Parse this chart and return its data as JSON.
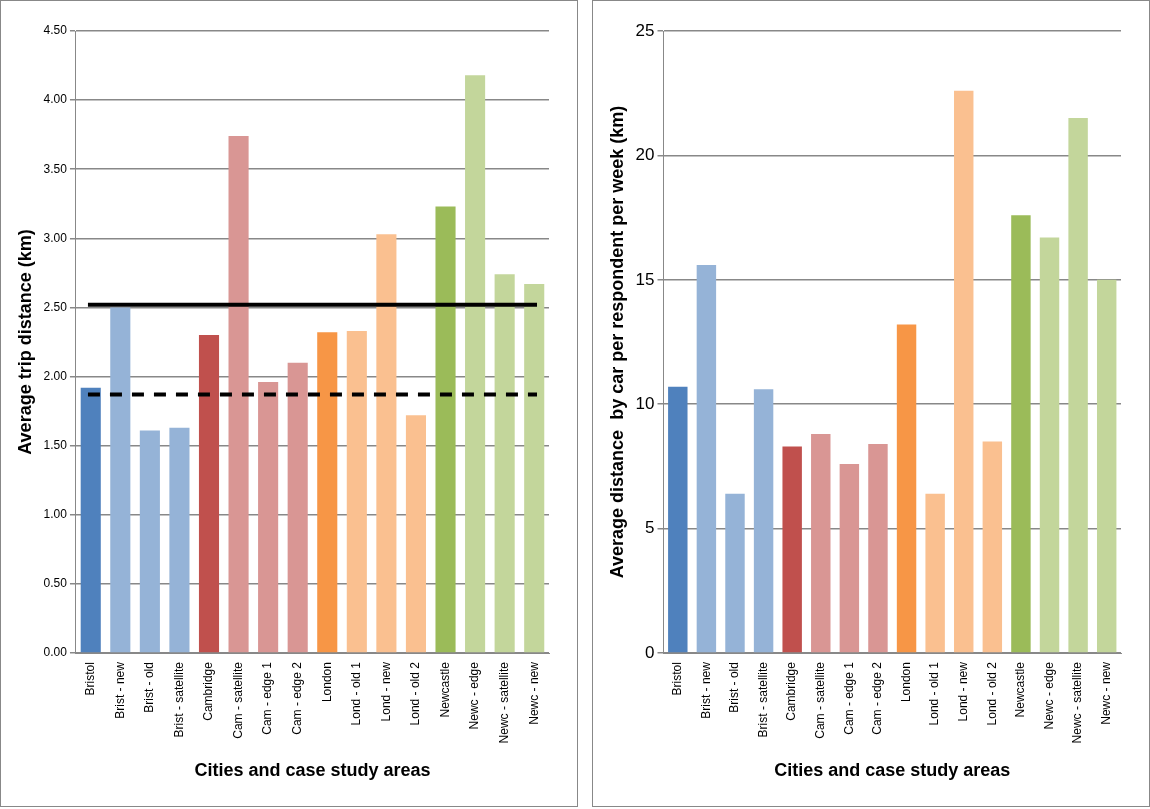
{
  "chart_data": [
    {
      "type": "bar",
      "xlabel": "Cities and case study areas",
      "ylabel": "Average trip distance (km)",
      "categories": [
        "Bristol",
        "Brist - new",
        "Brist - old",
        "Brist - satellite",
        "Cambridge",
        "Cam - satellite",
        "Cam - edge 1",
        "Cam - edge 2",
        "London",
        "Lond - old 1",
        "Lond - new",
        "Lond - old 2",
        "Newcastle",
        "Newc - edge",
        "Newc - satellite",
        "Newc - new"
      ],
      "values": [
        1.92,
        2.5,
        1.61,
        1.63,
        2.3,
        3.74,
        1.96,
        2.1,
        2.32,
        2.33,
        3.03,
        1.72,
        3.23,
        4.18,
        2.74,
        2.67
      ],
      "colors": [
        "#4f81bd",
        "#95b3d7",
        "#95b3d7",
        "#95b3d7",
        "#c0504d",
        "#d99694",
        "#d99694",
        "#d99694",
        "#f79646",
        "#fac090",
        "#fac090",
        "#fac090",
        "#9bbb59",
        "#c3d69b",
        "#c3d69b",
        "#c3d69b"
      ],
      "ylim": [
        0,
        4.5
      ],
      "yticks": [
        {
          "value": 0,
          "label": "0.00"
        },
        {
          "value": 0.5,
          "label": "0.50"
        },
        {
          "value": 1,
          "label": "1.00"
        },
        {
          "value": 1.5,
          "label": "1.50"
        },
        {
          "value": 2,
          "label": "2.00"
        },
        {
          "value": 2.5,
          "label": "2.50"
        },
        {
          "value": 3,
          "label": "3.00"
        },
        {
          "value": 3.5,
          "label": "3.50"
        },
        {
          "value": 4,
          "label": "4.00"
        },
        {
          "value": 4.5,
          "label": "4.50"
        }
      ],
      "grid": "y",
      "ref_lines": [
        {
          "axis": "y",
          "value": 2.52,
          "color": "#000000",
          "line_style": "solid"
        },
        {
          "axis": "y",
          "value": 1.87,
          "color": "#000000",
          "line_style": "dashed"
        }
      ]
    },
    {
      "type": "bar",
      "xlabel": "Cities and case study areas",
      "ylabel": "Average distance  by car per respondent per week (km)",
      "categories": [
        "Bristol",
        "Brist - new",
        "Brist - old",
        "Brist - satellite",
        "Cambridge",
        "Cam - satellite",
        "Cam - edge 1",
        "Cam - edge 2",
        "London",
        "Lond - old 1",
        "Lond - new",
        "Lond - old 2",
        "Newcastle",
        "Newc - edge",
        "Newc - satellite",
        "Newc - new"
      ],
      "values": [
        10.7,
        15.6,
        6.4,
        10.6,
        8.3,
        8.8,
        7.6,
        8.4,
        13.2,
        6.4,
        22.6,
        8.5,
        17.6,
        16.7,
        21.5,
        15.0
      ],
      "colors": [
        "#4f81bd",
        "#95b3d7",
        "#95b3d7",
        "#95b3d7",
        "#c0504d",
        "#d99694",
        "#d99694",
        "#d99694",
        "#f79646",
        "#fac090",
        "#fac090",
        "#fac090",
        "#9bbb59",
        "#c3d69b",
        "#c3d69b",
        "#c3d69b"
      ],
      "ylim": [
        0,
        25
      ],
      "yticks": [
        0,
        5,
        10,
        15,
        20,
        25
      ],
      "grid": "y"
    }
  ]
}
